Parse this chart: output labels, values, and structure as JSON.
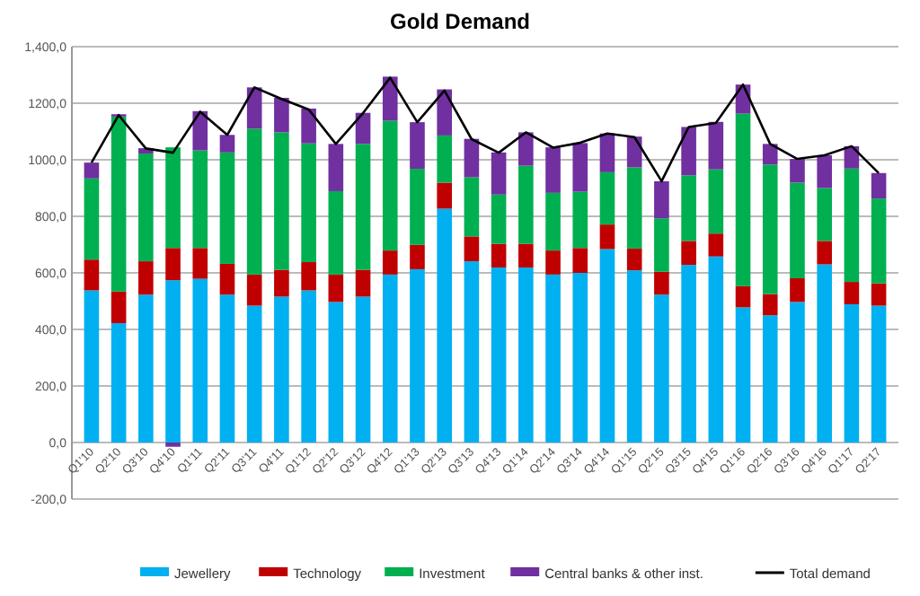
{
  "chart_data": {
    "type": "bar",
    "title": "Gold Demand",
    "stacked": true,
    "grid": "y",
    "legend": "bottom",
    "categories": [
      "Q1'10",
      "Q2'10",
      "Q3'10",
      "Q4'10",
      "Q1'11",
      "Q2'11",
      "Q3'11",
      "Q4'11",
      "Q1'12",
      "Q2'12",
      "Q3'12",
      "Q4'12",
      "Q1'13",
      "Q2'13",
      "Q3'13",
      "Q4'13",
      "Q1'14",
      "Q2'14",
      "Q3'14",
      "Q4'14",
      "Q1'15",
      "Q2'15",
      "Q3'15",
      "Q4'15",
      "Q1'16",
      "Q2'16",
      "Q3'16",
      "Q4'16",
      "Q1'17",
      "Q2'17"
    ],
    "ylim": [
      -200,
      1400
    ],
    "yticks": [
      {
        "value": -200,
        "label": "-200,0"
      },
      {
        "value": 0,
        "label": "0,0"
      },
      {
        "value": 200,
        "label": "200,0"
      },
      {
        "value": 400,
        "label": "400,0"
      },
      {
        "value": 600,
        "label": "600,0"
      },
      {
        "value": 800,
        "label": "800,0"
      },
      {
        "value": 1000,
        "label": "1000,0"
      },
      {
        "value": 1200,
        "label": "1200,0"
      },
      {
        "value": 1400,
        "label": "1,400,0"
      }
    ],
    "series": [
      {
        "name": "Jewellery",
        "color": "#00b0f0",
        "values": [
          538,
          422,
          523,
          574,
          579,
          523,
          484,
          516,
          538,
          497,
          516,
          594,
          613,
          827,
          641,
          619,
          619,
          594,
          600,
          684,
          609,
          523,
          628,
          658,
          478,
          450,
          497,
          630,
          489,
          484
        ]
      },
      {
        "name": "Technology",
        "color": "#c00000",
        "values": [
          109,
          112,
          118,
          114,
          109,
          109,
          110,
          95,
          100,
          97,
          95,
          85,
          86,
          92,
          88,
          84,
          84,
          85,
          88,
          87,
          77,
          81,
          85,
          81,
          75,
          75,
          84,
          83,
          79,
          79
        ]
      },
      {
        "name": "Investment",
        "color": "#00b050",
        "values": [
          287,
          619,
          381,
          356,
          345,
          394,
          516,
          486,
          420,
          295,
          445,
          459,
          269,
          167,
          209,
          174,
          276,
          204,
          199,
          185,
          287,
          189,
          232,
          227,
          610,
          458,
          338,
          187,
          401,
          300
        ]
      },
      {
        "name": "Central banks & other inst.",
        "color": "#7030a0",
        "values": [
          56,
          8,
          19,
          -15,
          139,
          62,
          146,
          122,
          123,
          167,
          110,
          156,
          165,
          163,
          136,
          149,
          118,
          161,
          172,
          137,
          109,
          131,
          171,
          168,
          103,
          73,
          84,
          116,
          79,
          90
        ]
      },
      {
        "name": "Total demand",
        "type": "line",
        "color": "#000000",
        "values": [
          990,
          1158,
          1040,
          1025,
          1170,
          1088,
          1256,
          1215,
          1178,
          1056,
          1165,
          1290,
          1133,
          1245,
          1073,
          1025,
          1097,
          1043,
          1060,
          1093,
          1080,
          924,
          1116,
          1130,
          1266,
          1056,
          1003,
          1016,
          1048,
          953
        ]
      }
    ]
  }
}
